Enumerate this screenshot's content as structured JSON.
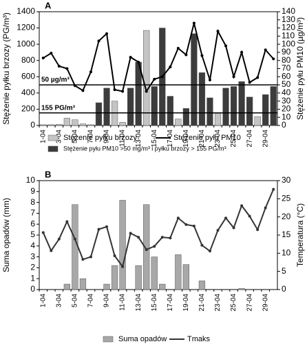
{
  "chart_data": [
    {
      "type": "combo",
      "panel_label": "A",
      "categories": [
        "1-04",
        null,
        "3-04",
        null,
        "5-04",
        null,
        "7-04",
        null,
        "9-04",
        null,
        "11-04",
        null,
        "13-04",
        null,
        "15-04",
        null,
        "17-04",
        null,
        "19-04",
        null,
        "21-04",
        null,
        "23-04",
        null,
        "25-04",
        null,
        "27-04",
        null,
        "29-04",
        null
      ],
      "y_label": "Stężenie pyłku brzozy (PG/m³)",
      "y2_label": "Stężenie pyłu PM10 (µg/m³)",
      "ylim": [
        0,
        1400
      ],
      "yticks": [
        0,
        200,
        400,
        600,
        800,
        1000,
        1200,
        1400
      ],
      "y2lim": [
        0,
        140
      ],
      "y2ticks": [
        0,
        10,
        20,
        30,
        40,
        50,
        60,
        70,
        80,
        90,
        100,
        110,
        120,
        130,
        140
      ],
      "series": [
        {
          "name": "Stężenie pyłku brzozy",
          "type": "bar",
          "color": "#c4c4c4",
          "values": [
            10,
            10,
            15,
            90,
            70,
            20,
            10,
            null,
            null,
            300,
            40,
            null,
            null,
            1170,
            null,
            null,
            null,
            80,
            null,
            null,
            null,
            null,
            150,
            null,
            null,
            null,
            null,
            110,
            null,
            null
          ]
        },
        {
          "name": "Stężenie pyłu PM10",
          "type": "line",
          "axis": "y2",
          "color": "#000000",
          "values": [
            83,
            89,
            73,
            70,
            49,
            43,
            66,
            104,
            113,
            44,
            42,
            84,
            78,
            42,
            57,
            60,
            72,
            95,
            87,
            126,
            86,
            56,
            116,
            98,
            60,
            90,
            53,
            59,
            93,
            82
          ]
        },
        {
          "name": "Stężenie pyłu PM10 >50 mg/m³ i pyłku brzozy > 155 PG/m³",
          "type": "bar",
          "color": "#3c3c3c",
          "values": [
            null,
            null,
            null,
            null,
            null,
            null,
            null,
            280,
            460,
            null,
            null,
            460,
            780,
            null,
            480,
            1200,
            360,
            null,
            210,
            1130,
            650,
            340,
            null,
            460,
            480,
            540,
            350,
            null,
            380,
            480
          ]
        }
      ],
      "annotations": [
        {
          "label": "50 µg/m³",
          "value": 50,
          "axis": "y2"
        },
        {
          "label": "155 PG/m³",
          "value": 155
        }
      ]
    },
    {
      "type": "combo",
      "panel_label": "B",
      "categories": [
        "1-04",
        null,
        "3-04",
        null,
        "5-04",
        null,
        "7-04",
        null,
        "9-04",
        null,
        "11-04",
        null,
        "13-04",
        null,
        "15-04",
        null,
        "17-04",
        null,
        "19-04",
        null,
        "21-04",
        null,
        "23-04",
        null,
        "25-04",
        null,
        "27-04",
        null,
        "29-04",
        null
      ],
      "y_label": "Suma opadów (mm)",
      "y2_label": "Temperatura (°C)",
      "ylim": [
        0,
        10
      ],
      "yticks": [
        0,
        1,
        2,
        3,
        4,
        5,
        6,
        7,
        8,
        9,
        10
      ],
      "y2lim": [
        0,
        30
      ],
      "y2ticks": [
        0,
        5,
        10,
        15,
        20,
        25,
        30
      ],
      "series": [
        {
          "name": "Suma opadów",
          "type": "bar",
          "color": "#a8a8a8",
          "values": [
            0,
            0,
            0,
            0.5,
            7.8,
            1.0,
            0,
            0,
            0.5,
            2.2,
            8.2,
            0,
            2.2,
            7.8,
            3.0,
            0.5,
            0,
            3.2,
            2.3,
            0,
            0.8,
            0,
            0,
            0,
            0,
            0.1,
            0,
            0,
            0,
            0
          ]
        },
        {
          "name": "Tmaks",
          "type": "line",
          "axis": "y2",
          "color": "#333333",
          "values": [
            15.7,
            10.7,
            13.9,
            18.7,
            13.9,
            8.3,
            9.0,
            16.6,
            17.3,
            9.3,
            6.3,
            15.5,
            14.4,
            11.0,
            11.9,
            14.4,
            14.2,
            19.7,
            17.9,
            17.5,
            12.2,
            10.6,
            16.3,
            19.7,
            17.0,
            23.1,
            20.2,
            16.5,
            22.5,
            27.6
          ]
        }
      ]
    }
  ]
}
